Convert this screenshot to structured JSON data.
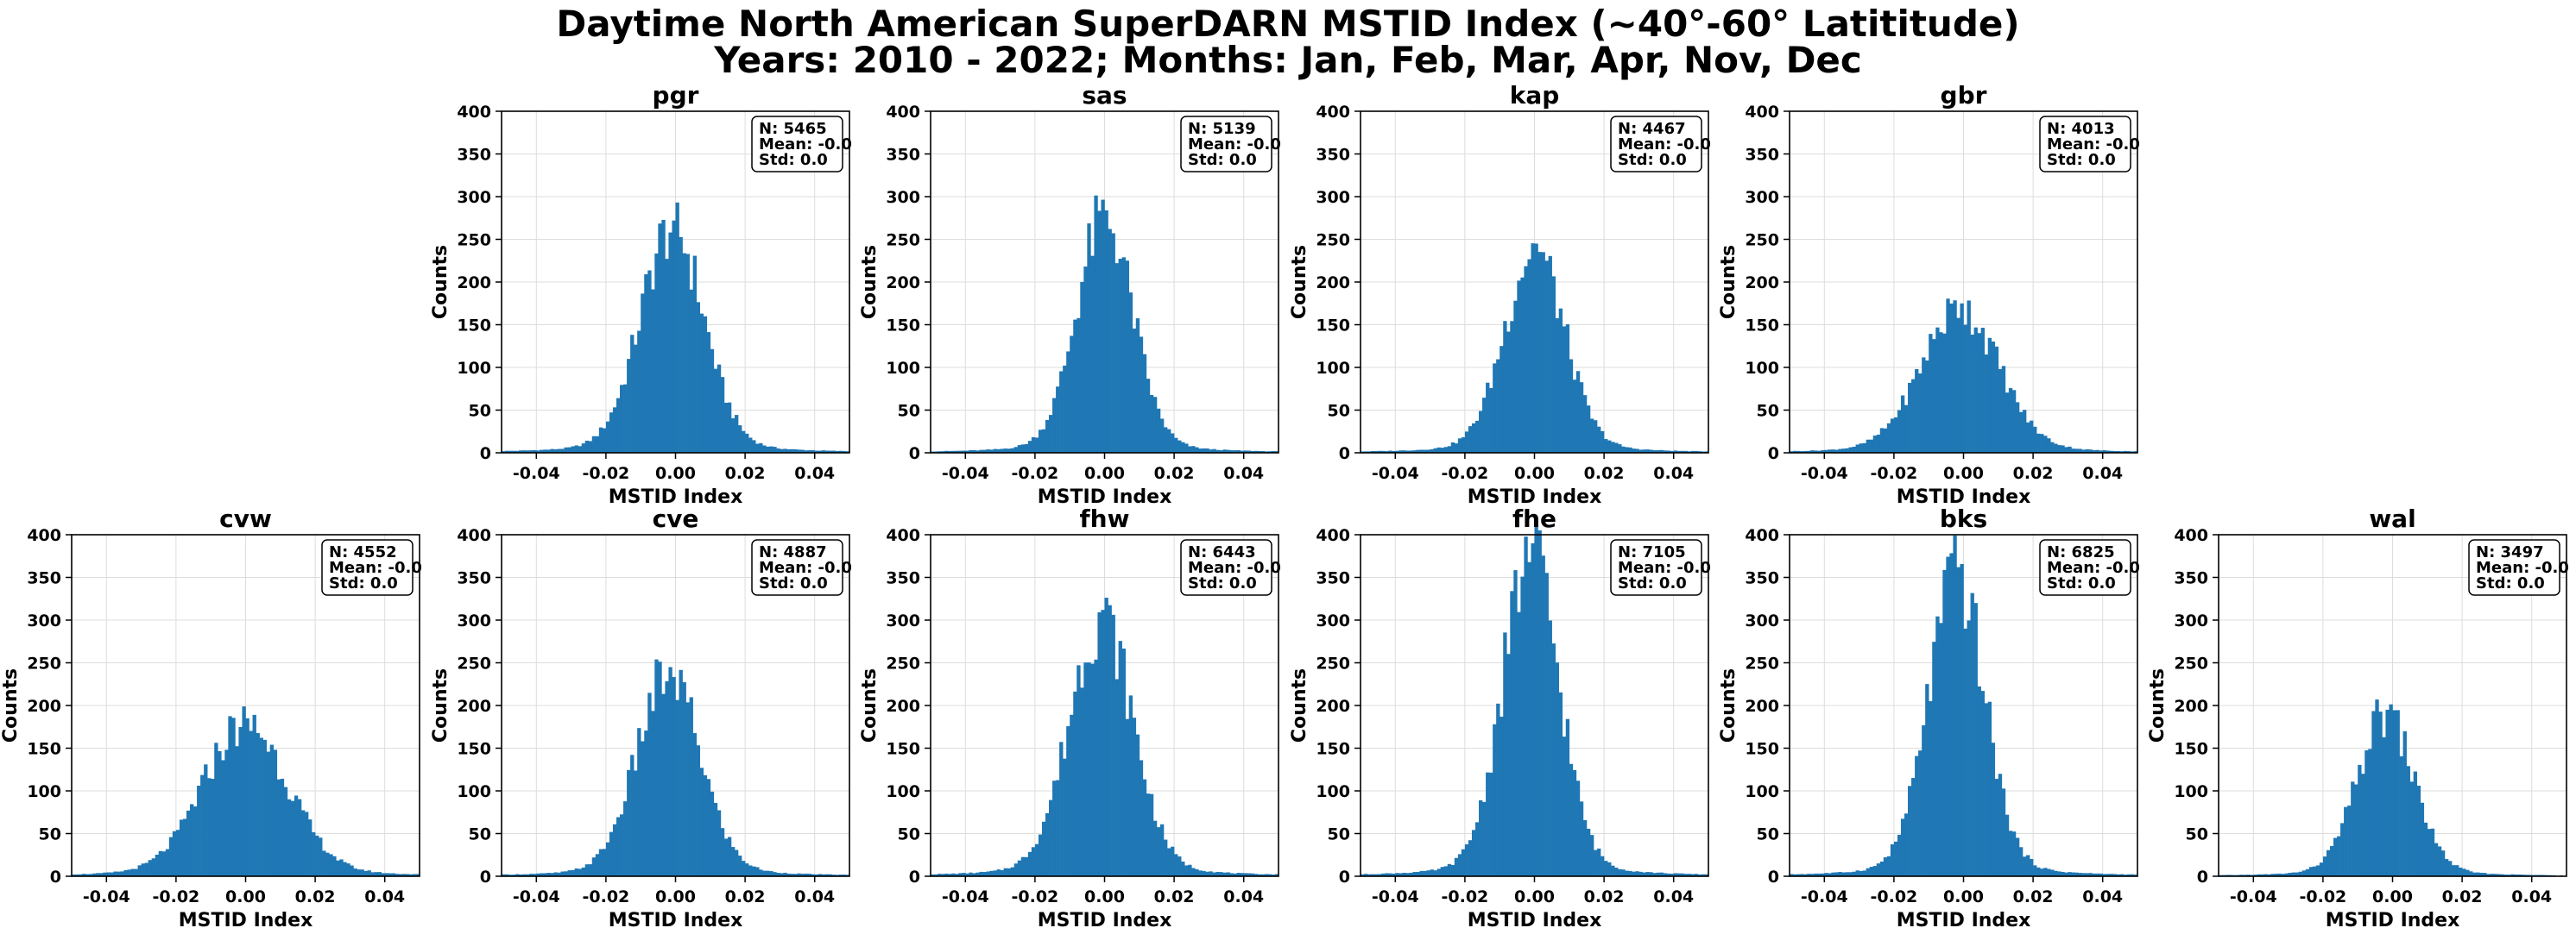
{
  "figure": {
    "title_line1": "Daytime North American SuperDARN MSTID Index (~40°-60° Latititude)",
    "title_line2": "Years: 2010 - 2022; Months: Jan, Feb, Mar, Apr, Nov, Dec"
  },
  "colors": {
    "bar": "#1f77b4",
    "grid": "#dddddd",
    "axis": "#000000"
  },
  "chart_data": [
    {
      "type": "bar",
      "title": "pgr",
      "xlabel": "MSTID Index",
      "ylabel": "Counts",
      "xlim": [
        -0.05,
        0.05
      ],
      "ylim": [
        0,
        400
      ],
      "xticks": [
        "-0.04",
        "-0.02",
        "0.00",
        "0.02",
        "0.04"
      ],
      "yticks": [
        "0",
        "50",
        "100",
        "150",
        "200",
        "250",
        "300",
        "350",
        "400"
      ],
      "grid": true,
      "legend_box": {
        "n": "N: 5465",
        "mean": "Mean: -0.0",
        "std": "Std: 0.0"
      },
      "peak": 272,
      "peak_x": -0.001,
      "sigma": 0.009
    },
    {
      "type": "bar",
      "title": "sas",
      "xlabel": "MSTID Index",
      "ylabel": "Counts",
      "xlim": [
        -0.05,
        0.05
      ],
      "ylim": [
        0,
        400
      ],
      "xticks": [
        "-0.04",
        "-0.02",
        "0.00",
        "0.02",
        "0.04"
      ],
      "yticks": [
        "0",
        "50",
        "100",
        "150",
        "200",
        "250",
        "300",
        "350",
        "400"
      ],
      "grid": true,
      "legend_box": {
        "n": "N: 5139",
        "mean": "Mean: -0.0",
        "std": "Std: 0.0"
      },
      "peak": 284,
      "peak_x": 0.0,
      "sigma": 0.008
    },
    {
      "type": "bar",
      "title": "kap",
      "xlabel": "MSTID Index",
      "ylabel": "Counts",
      "xlim": [
        -0.05,
        0.05
      ],
      "ylim": [
        0,
        400
      ],
      "xticks": [
        "-0.04",
        "-0.02",
        "0.00",
        "0.02",
        "0.04"
      ],
      "yticks": [
        "0",
        "50",
        "100",
        "150",
        "200",
        "250",
        "300",
        "350",
        "400"
      ],
      "grid": true,
      "legend_box": {
        "n": "N: 4467",
        "mean": "Mean: -0.0",
        "std": "Std: 0.0"
      },
      "peak": 245,
      "peak_x": 0.0,
      "sigma": 0.0085
    },
    {
      "type": "bar",
      "title": "gbr",
      "xlabel": "MSTID Index",
      "ylabel": "Counts",
      "xlim": [
        -0.05,
        0.05
      ],
      "ylim": [
        0,
        400
      ],
      "xticks": [
        "-0.04",
        "-0.02",
        "0.00",
        "0.02",
        "0.04"
      ],
      "yticks": [
        "0",
        "50",
        "100",
        "150",
        "200",
        "250",
        "300",
        "350",
        "400"
      ],
      "grid": true,
      "legend_box": {
        "n": "N: 4013",
        "mean": "Mean: -0.0",
        "std": "Std: 0.0"
      },
      "peak": 175,
      "peak_x": -0.001,
      "sigma": 0.011
    },
    {
      "type": "bar",
      "title": "cvw",
      "xlabel": "MSTID Index",
      "ylabel": "Counts",
      "xlim": [
        -0.05,
        0.05
      ],
      "ylim": [
        0,
        400
      ],
      "xticks": [
        "-0.04",
        "-0.02",
        "0.00",
        "0.02",
        "0.04"
      ],
      "yticks": [
        "0",
        "50",
        "100",
        "150",
        "200",
        "250",
        "300",
        "350",
        "400"
      ],
      "grid": true,
      "legend_box": {
        "n": "N: 4552",
        "mean": "Mean: -0.0",
        "std": "Std: 0.0"
      },
      "peak": 185,
      "peak_x": 0.0,
      "sigma": 0.012
    },
    {
      "type": "bar",
      "title": "cve",
      "xlabel": "MSTID Index",
      "ylabel": "Counts",
      "xlim": [
        -0.05,
        0.05
      ],
      "ylim": [
        0,
        400
      ],
      "xticks": [
        "-0.04",
        "-0.02",
        "0.00",
        "0.02",
        "0.04"
      ],
      "yticks": [
        "0",
        "50",
        "100",
        "150",
        "200",
        "250",
        "300",
        "350",
        "400"
      ],
      "grid": true,
      "legend_box": {
        "n": "N: 4887",
        "mean": "Mean: -0.0",
        "std": "Std: 0.0"
      },
      "peak": 245,
      "peak_x": -0.002,
      "sigma": 0.009
    },
    {
      "type": "bar",
      "title": "fhw",
      "xlabel": "MSTID Index",
      "ylabel": "Counts",
      "xlim": [
        -0.05,
        0.05
      ],
      "ylim": [
        0,
        400
      ],
      "xticks": [
        "-0.04",
        "-0.02",
        "0.00",
        "0.02",
        "0.04"
      ],
      "yticks": [
        "0",
        "50",
        "100",
        "150",
        "200",
        "250",
        "300",
        "350",
        "400"
      ],
      "grid": true,
      "legend_box": {
        "n": "N: 6443",
        "mean": "Mean: -0.0",
        "std": "Std: 0.0"
      },
      "peak": 312,
      "peak_x": -0.001,
      "sigma": 0.009
    },
    {
      "type": "bar",
      "title": "fhe",
      "xlabel": "MSTID Index",
      "ylabel": "Counts",
      "xlim": [
        -0.05,
        0.05
      ],
      "ylim": [
        0,
        400
      ],
      "xticks": [
        "-0.04",
        "-0.02",
        "0.00",
        "0.02",
        "0.04"
      ],
      "yticks": [
        "0",
        "50",
        "100",
        "150",
        "200",
        "250",
        "300",
        "350",
        "400"
      ],
      "grid": true,
      "legend_box": {
        "n": "N: 7105",
        "mean": "Mean: -0.0",
        "std": "Std: 0.0"
      },
      "peak": 390,
      "peak_x": -0.001,
      "sigma": 0.008
    },
    {
      "type": "bar",
      "title": "bks",
      "xlabel": "MSTID Index",
      "ylabel": "Counts",
      "xlim": [
        -0.05,
        0.05
      ],
      "ylim": [
        0,
        400
      ],
      "xticks": [
        "-0.04",
        "-0.02",
        "0.00",
        "0.02",
        "0.04"
      ],
      "yticks": [
        "0",
        "50",
        "100",
        "150",
        "200",
        "250",
        "300",
        "350",
        "400"
      ],
      "grid": true,
      "legend_box": {
        "n": "N: 6825",
        "mean": "Mean: -0.0",
        "std": "Std: 0.0"
      },
      "peak": 362,
      "peak_x": -0.002,
      "sigma": 0.008
    },
    {
      "type": "bar",
      "title": "wal",
      "xlabel": "MSTID Index",
      "ylabel": "Counts",
      "xlim": [
        -0.05,
        0.05
      ],
      "ylim": [
        0,
        400
      ],
      "xticks": [
        "-0.04",
        "-0.02",
        "0.00",
        "0.02",
        "0.04"
      ],
      "yticks": [
        "0",
        "50",
        "100",
        "150",
        "200",
        "250",
        "300",
        "350",
        "400"
      ],
      "grid": true,
      "legend_box": {
        "n": "N: 3497",
        "mean": "Mean: -0.0",
        "std": "Std: 0.0"
      },
      "peak": 195,
      "peak_x": -0.002,
      "sigma": 0.008
    }
  ]
}
